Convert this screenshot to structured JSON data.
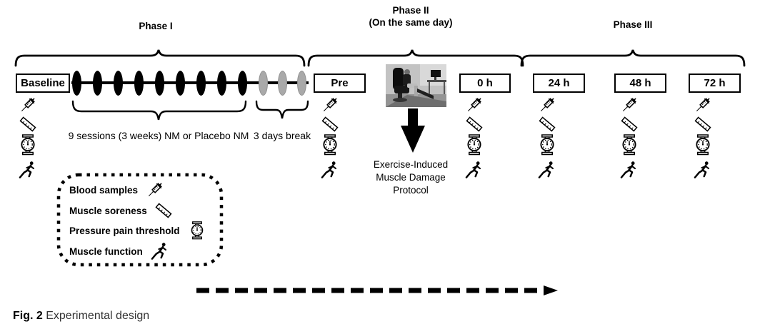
{
  "colors": {
    "ink": "#000000",
    "gray_session": "#a9a9a9",
    "caption_text": "#333333"
  },
  "phases": {
    "phase1": {
      "label": "Phase I"
    },
    "phase2": {
      "label": "Phase II",
      "sublabel": "(On the same day)"
    },
    "phase3": {
      "label": "Phase III"
    }
  },
  "timepoints": [
    "Baseline",
    "Pre",
    "0 h",
    "24 h",
    "48 h",
    "72 h"
  ],
  "timeline": {
    "black_sessions": 9,
    "gray_sessions": 3,
    "sessions_label": "9 sessions (3 weeks) NM or Placebo NM",
    "break_label": "3 days break"
  },
  "intervention": {
    "lines": [
      "Exercise-Induced",
      "Muscle Damage",
      "Protocol"
    ]
  },
  "measures": {
    "icons": [
      "syringe-icon",
      "ruler-icon",
      "algometer-icon",
      "runner-icon"
    ]
  },
  "legend": {
    "items": [
      {
        "label": "Blood samples",
        "icon": "syringe-icon"
      },
      {
        "label": "Muscle soreness",
        "icon": "ruler-icon"
      },
      {
        "label": "Pressure pain threshold",
        "icon": "algometer-icon"
      },
      {
        "label": "Muscle function",
        "icon": "runner-icon"
      }
    ]
  },
  "caption": {
    "label": "Fig. 2",
    "text": "Experimental design"
  }
}
